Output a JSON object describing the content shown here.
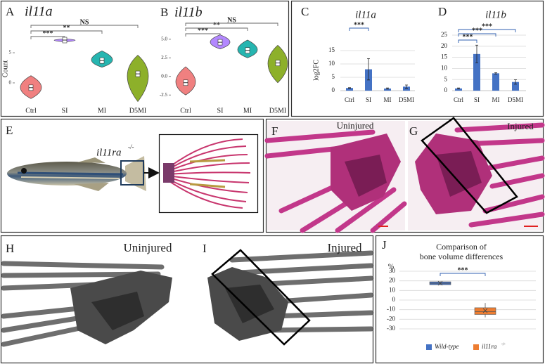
{
  "panels": {
    "labels": [
      "A",
      "B",
      "C",
      "D",
      "E",
      "F",
      "G",
      "H",
      "I",
      "J"
    ],
    "e_label": "il11ra",
    "e_label_sup": "-/-",
    "f_label": "Uninjured",
    "g_label": "Injured",
    "h_label": "Uninjured",
    "i_label": "Injured"
  },
  "chart_data": [
    {
      "type": "violin",
      "title": "il11a",
      "y_label": "Count",
      "categories": [
        "Ctrl",
        "SI",
        "MI",
        "D5MI"
      ],
      "values": [
        -0.8,
        7.1,
        3.7,
        1.5
      ],
      "mins": [
        -2.6,
        6.8,
        2.6,
        -3.1
      ],
      "maxs": [
        1.2,
        7.3,
        5.3,
        4.6
      ],
      "colors": [
        "#f08080",
        "#b388ff",
        "#26b5b0",
        "#8db02a"
      ],
      "ylim": [
        -4.2,
        9.2
      ],
      "yticks": [
        0,
        5
      ],
      "annotations": [
        {
          "text": "***",
          "from": "Ctrl",
          "to": "SI"
        },
        {
          "text": "**",
          "from": "Ctrl",
          "to": "MI"
        },
        {
          "text": "NS",
          "from": "Ctrl",
          "to": "D5MI"
        }
      ]
    },
    {
      "type": "violin",
      "title": "il11b",
      "categories": [
        "Ctrl",
        "SI",
        "MI",
        "D5MI"
      ],
      "values": [
        -0.85,
        4.6,
        3.5,
        1.8
      ],
      "mins": [
        -2.5,
        3.7,
        2.5,
        -0.85
      ],
      "maxs": [
        1.3,
        5.6,
        4.9,
        4.2
      ],
      "colors": [
        "#f08080",
        "#b388ff",
        "#26b5b0",
        "#8db02a"
      ],
      "ylim": [
        -3.9,
        6.5
      ],
      "yticks": [
        {
          "value": 5,
          "label": "5.0"
        },
        2.5,
        {
          "value": 0,
          "label": "0.0"
        },
        -2.5
      ],
      "annotations": [
        {
          "text": "***",
          "from": "Ctrl",
          "to": "SI"
        },
        {
          "text": "**",
          "from": "Ctrl",
          "to": "MI"
        },
        {
          "text": "NS",
          "from": "Ctrl",
          "to": "D5MI"
        }
      ]
    },
    {
      "type": "bar",
      "title": "il11a",
      "y_label": "log2FC",
      "categories": [
        "Ctrl",
        "SI",
        "MI",
        "D5MI"
      ],
      "values": [
        1,
        8,
        0.8,
        1.5
      ],
      "errors": [
        0.1,
        4,
        0.2,
        0.6
      ],
      "color": "#4472c4",
      "ylim": [
        0,
        15
      ],
      "yticks": [
        0,
        5,
        10,
        15
      ],
      "grid": true,
      "annotations": [
        {
          "text": "***",
          "from": "Ctrl",
          "to": "SI"
        }
      ]
    },
    {
      "type": "bar",
      "title": "il11b",
      "categories": [
        "Ctrl",
        "SI",
        "MI",
        "D5MI"
      ],
      "values": [
        1,
        16.5,
        7.8,
        3.9
      ],
      "errors": [
        0.2,
        4,
        0.3,
        1
      ],
      "color": "#4472c4",
      "ylim": [
        0,
        25
      ],
      "yticks": [
        0,
        5,
        10,
        15,
        20,
        25
      ],
      "grid": true,
      "annotations": [
        {
          "text": "***",
          "from": "Ctrl",
          "to": "D5MI"
        },
        {
          "text": "***",
          "from": "Ctrl",
          "to": "MI"
        },
        {
          "text": "***",
          "from": "Ctrl",
          "to": "SI"
        }
      ]
    },
    {
      "type": "box",
      "title_lines": [
        "Comparison of",
        "bone volume differences"
      ],
      "y_label": "%",
      "series": [
        {
          "name": "Wild-type",
          "color": "#4472c4",
          "min": 15.5,
          "q1": 16,
          "median": 17.5,
          "q3": 19,
          "max": 19.5,
          "mean": 17.5
        },
        {
          "name": "il11ra",
          "name_sup": "-/-",
          "color": "#ed7d31",
          "min": -18,
          "q1": -15,
          "median": -12,
          "q3": -8,
          "max": -3,
          "mean": -11
        }
      ],
      "ylim": [
        -30,
        30
      ],
      "yticks": [
        -30,
        -20,
        -10,
        0,
        10,
        20,
        30
      ],
      "grid": true,
      "legend": "bottom",
      "annotations": [
        {
          "text": "***",
          "from": "Wild-type",
          "to": "il11ra"
        }
      ]
    }
  ]
}
